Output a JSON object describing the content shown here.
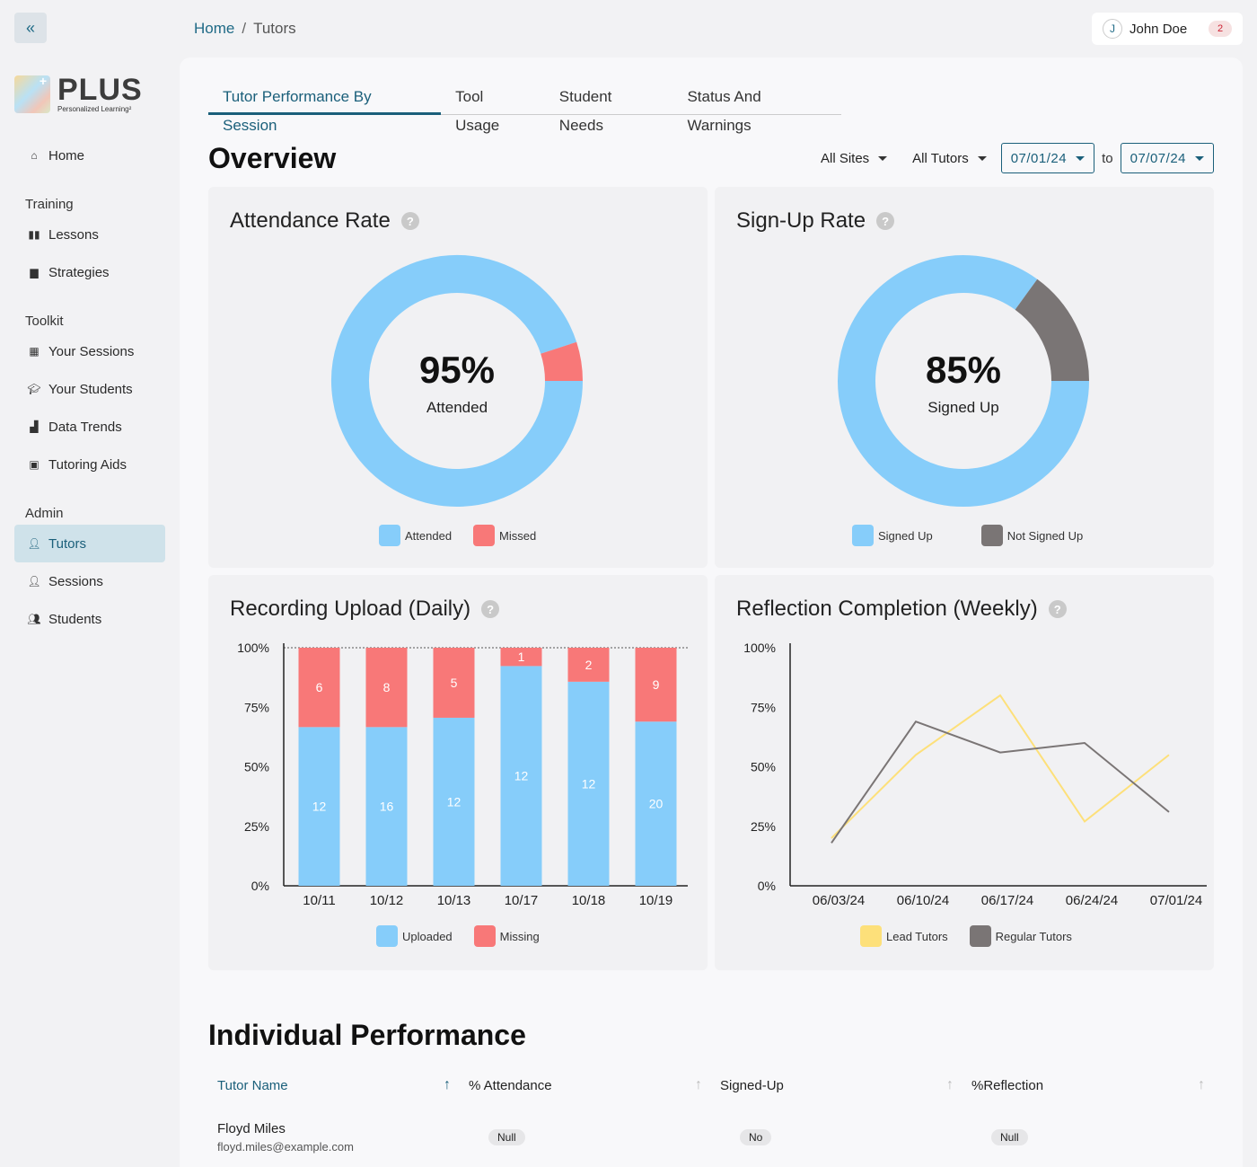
{
  "sidebar": {
    "logo_text": "PLUS",
    "logo_subtitle": "Personalized Learning²",
    "items": {
      "home": "Home",
      "training_section": "Training",
      "lessons": "Lessons",
      "strategies": "Strategies",
      "toolkit_section": "Toolkit",
      "your_sessions": "Your Sessions",
      "your_students": "Your Students",
      "data_trends": "Data Trends",
      "tutoring_aids": "Tutoring Aids",
      "admin_section": "Admin",
      "tutors": "Tutors",
      "sessions": "Sessions",
      "students": "Students"
    }
  },
  "breadcrumb": {
    "home": "Home",
    "separator": "/",
    "current": "Tutors"
  },
  "user": {
    "initial": "J",
    "name": "John Doe",
    "notifications": "2"
  },
  "tabs": [
    "Tutor Performance By Session",
    "Tool Usage",
    "Student Needs",
    "Status And Warnings"
  ],
  "overview": {
    "title": "Overview",
    "sites": "All Sites",
    "tutors": "All Tutors",
    "date_from": "07/01/24",
    "to_label": "to",
    "date_to": "07/07/24"
  },
  "attendance": {
    "title": "Attendance Rate",
    "percent": "95%",
    "label": "Attended",
    "legend": [
      "Attended",
      "Missed"
    ]
  },
  "signup": {
    "title": "Sign-Up Rate",
    "percent": "85%",
    "label": "Signed Up",
    "legend": [
      "Signed Up",
      "Not Signed Up"
    ]
  },
  "recording": {
    "title": "Recording Upload  (Daily)",
    "legend": [
      "Uploaded",
      "Missing"
    ]
  },
  "reflection": {
    "title": "Reflection Completion (Weekly)",
    "legend": [
      "Lead Tutors",
      "Regular Tutors"
    ]
  },
  "chart_data": [
    {
      "type": "pie",
      "title": "Attendance Rate",
      "categories": [
        "Attended",
        "Missed"
      ],
      "values": [
        95,
        5
      ],
      "colors": [
        "#86cdfa",
        "#f87878"
      ]
    },
    {
      "type": "pie",
      "title": "Sign-Up Rate",
      "categories": [
        "Signed Up",
        "Not Signed Up"
      ],
      "values": [
        85,
        15
      ],
      "colors": [
        "#86cdfa",
        "#7a7575"
      ]
    },
    {
      "type": "bar",
      "title": "Recording Upload  (Daily)",
      "stacked": true,
      "categories": [
        "10/11",
        "10/12",
        "10/13",
        "10/17",
        "10/18",
        "10/19"
      ],
      "series": [
        {
          "name": "Uploaded",
          "values": [
            12,
            16,
            12,
            12,
            12,
            20
          ],
          "color": "#86cdfa"
        },
        {
          "name": "Missing",
          "values": [
            6,
            8,
            5,
            1,
            2,
            9
          ],
          "color": "#f87878"
        }
      ],
      "ytick_labels": [
        "100%",
        "75%",
        "50%",
        "25%",
        "0%"
      ],
      "ylim": [
        0,
        100
      ]
    },
    {
      "type": "line",
      "title": "Reflection Completion (Weekly)",
      "categories": [
        "06/03/24",
        "06/10/24",
        "06/17/24",
        "06/24/24",
        "07/01/24"
      ],
      "series": [
        {
          "name": "Lead Tutors",
          "x": [
            0,
            1,
            2,
            3,
            4
          ],
          "values": [
            20,
            55,
            80,
            27,
            55
          ],
          "color": "#fde07a"
        },
        {
          "name": "Regular Tutors",
          "x": [
            0,
            1,
            2,
            3,
            4
          ],
          "values": [
            18,
            69,
            56,
            60,
            31
          ],
          "color": "#7a7575"
        }
      ],
      "ytick_labels": [
        "100%",
        "75%",
        "50%",
        "25%",
        "0%"
      ],
      "ylim": [
        0,
        100
      ]
    }
  ],
  "individual": {
    "title": "Individual Performance",
    "columns": [
      "Tutor Name",
      "% Attendance",
      "Signed-Up",
      "%Reflection"
    ],
    "rows": [
      {
        "name": "Floyd Miles",
        "email": "floyd.miles@example.com",
        "attendance": "Null",
        "signed_up": "No",
        "reflection": "Null"
      }
    ]
  }
}
